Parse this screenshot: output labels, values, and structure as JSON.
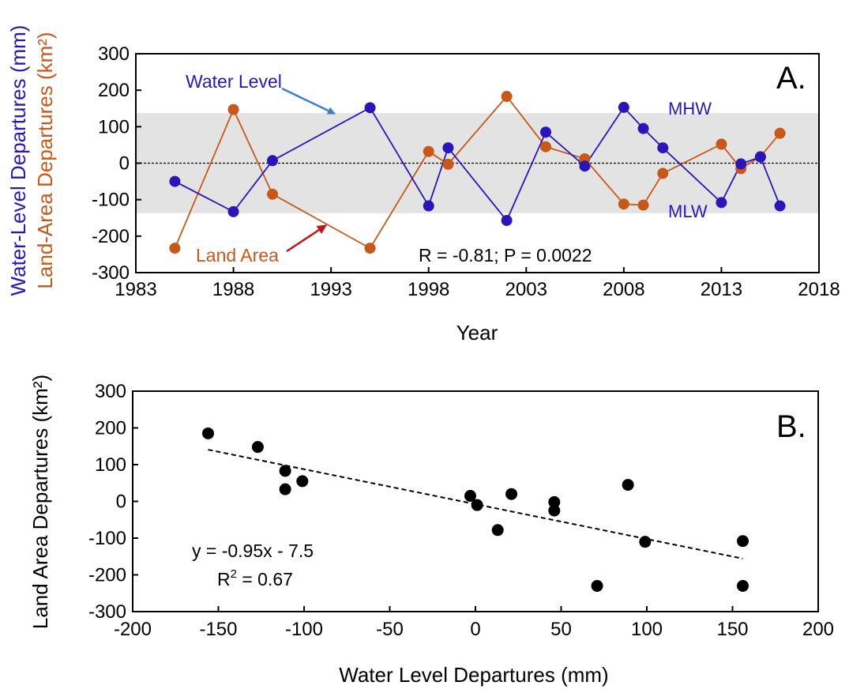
{
  "colors": {
    "water_level": "#2a16b8",
    "land_area": "#c8581a",
    "band": "#e3e3e3",
    "arrow_blue": "#3b7fd0",
    "arrow_red": "#c0141a"
  },
  "chart_data": [
    {
      "panel": "A.",
      "type": "line",
      "xlabel": "Year",
      "ylabel_line1": "Water-Level Departures (mm)",
      "ylabel_line2": "Land-Area Departures (km²)",
      "xlim": [
        1983,
        2018
      ],
      "ylim": [
        -300,
        300
      ],
      "xticks": [
        1983,
        1988,
        1993,
        1998,
        2003,
        2008,
        2013,
        2018
      ],
      "yticks": [
        -300,
        -200,
        -100,
        0,
        100,
        200,
        300
      ],
      "shaded_band": [
        -137,
        137
      ],
      "zero_line": true,
      "series": [
        {
          "name": "Water Level",
          "color_key": "water_level",
          "points": [
            [
              1985,
              -50
            ],
            [
              1988,
              -133
            ],
            [
              1990,
              7
            ],
            [
              1995,
              152
            ],
            [
              1998,
              -117
            ],
            [
              1999,
              42
            ],
            [
              2002,
              -157
            ],
            [
              2004,
              85
            ],
            [
              2006,
              -8
            ],
            [
              2008,
              153
            ],
            [
              2009,
              95
            ],
            [
              2010,
              42
            ],
            [
              2013,
              -108
            ],
            [
              2014,
              -2
            ],
            [
              2015,
              17
            ],
            [
              2016,
              -117
            ]
          ]
        },
        {
          "name": "Land Area",
          "color_key": "land_area",
          "points": [
            [
              1985,
              -233
            ],
            [
              1988,
              147
            ],
            [
              1990,
              -85
            ],
            [
              1995,
              -233
            ],
            [
              1998,
              32
            ],
            [
              1999,
              -3
            ],
            [
              2002,
              183
            ],
            [
              2004,
              45
            ],
            [
              2006,
              12
            ],
            [
              2008,
              -112
            ],
            [
              2009,
              -115
            ],
            [
              2010,
              -28
            ],
            [
              2013,
              52
            ],
            [
              2014,
              -15
            ],
            [
              2015,
              18
            ],
            [
              2016,
              82
            ]
          ]
        }
      ],
      "annotations": {
        "mhw": "MHW",
        "mlw": "MLW",
        "stats": "R = -0.81; P = 0.0022"
      }
    },
    {
      "panel": "B.",
      "type": "scatter",
      "xlabel": "Water Level Departures (mm)",
      "ylabel": "Land Area Departures (km²)",
      "xlim": [
        -200,
        200
      ],
      "ylim": [
        -300,
        300
      ],
      "xticks": [
        -200,
        -150,
        -100,
        -50,
        0,
        50,
        100,
        150,
        200
      ],
      "yticks": [
        -300,
        -200,
        -100,
        0,
        100,
        200,
        300
      ],
      "points": [
        [
          -156,
          185
        ],
        [
          -127,
          148
        ],
        [
          -111,
          83
        ],
        [
          -111,
          33
        ],
        [
          -101,
          55
        ],
        [
          -3,
          15
        ],
        [
          1,
          -10
        ],
        [
          13,
          -78
        ],
        [
          21,
          20
        ],
        [
          46,
          -2
        ],
        [
          46,
          -25
        ],
        [
          71,
          -230
        ],
        [
          89,
          45
        ],
        [
          99,
          -110
        ],
        [
          156,
          -108
        ],
        [
          156,
          -230
        ]
      ],
      "fit": {
        "slope": -0.95,
        "intercept": -7.5,
        "x_range": [
          -156,
          156
        ]
      },
      "equation": "y = -0.95x - 7.5",
      "r2_prefix": "R",
      "r2_sup": "2",
      "r2_value": " = 0.67"
    }
  ]
}
